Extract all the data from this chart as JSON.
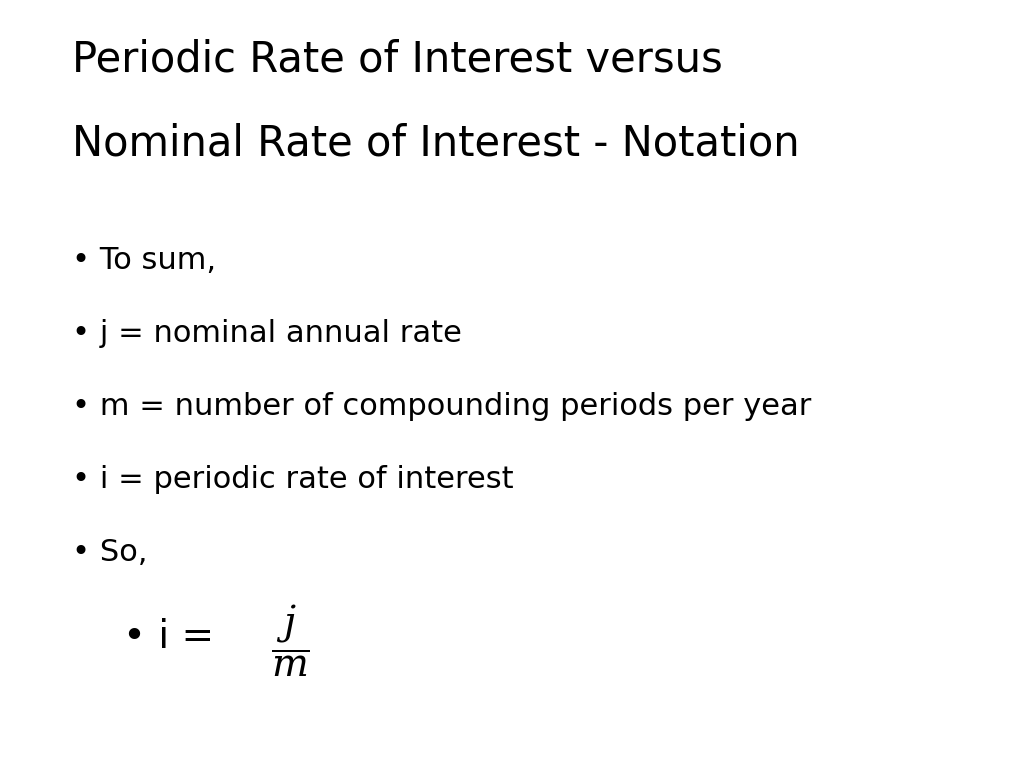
{
  "title_line1": "Periodic Rate of Interest versus",
  "title_line2": "Nominal Rate of Interest - Notation",
  "bullet_items": [
    "To sum,",
    "j = nominal annual rate",
    "m = number of compounding periods per year",
    "i = periodic rate of interest",
    "So,"
  ],
  "background_color": "#ffffff",
  "text_color": "#000000",
  "title_fontsize": 30,
  "bullet_fontsize": 22,
  "formula_fontsize": 28,
  "title_font": "DejaVu Sans",
  "bullet_font": "DejaVu Sans"
}
